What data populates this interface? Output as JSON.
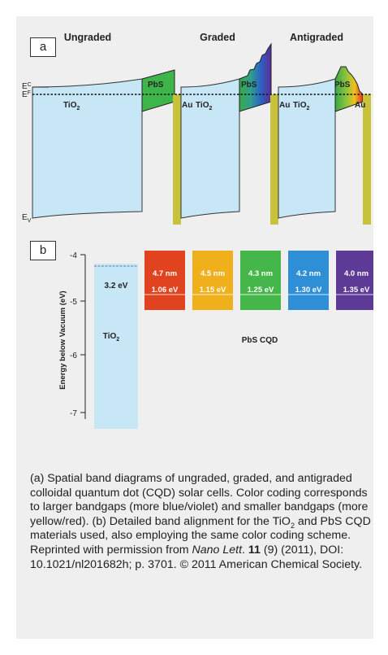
{
  "panel_a": {
    "label": "a",
    "titles": [
      "Ungraded",
      "Graded",
      "Antigraded"
    ],
    "ec_label": "E",
    "ec_sub": "C",
    "ef_label": "E",
    "ef_sub": "F",
    "ev_label": "E",
    "ev_sub": "V",
    "tio2_main": "TiO",
    "tio2_sub": "2",
    "pbs": "PbS",
    "au": "Au"
  },
  "panel_b": {
    "label": "b",
    "ylabel": "Energy below Vacuum (eV)",
    "ticks": [
      "-4",
      "-5",
      "-6",
      "-7"
    ],
    "tio2_gap": "3.2 eV",
    "tio2_main": "TiO",
    "tio2_sub": "2",
    "pbs_label": "PbS CQD",
    "dots": [
      {
        "size": "4.7 nm",
        "gap": "1.06 eV",
        "color": "#e2431f"
      },
      {
        "size": "4.5 nm",
        "gap": "1.15 eV",
        "color": "#f0b01c"
      },
      {
        "size": "4.3 nm",
        "gap": "1.25 eV",
        "color": "#45b649"
      },
      {
        "size": "4.2 nm",
        "gap": "1.30 eV",
        "color": "#2f8fd6"
      },
      {
        "size": "4.0 nm",
        "gap": "1.35 eV",
        "color": "#5c3a96"
      }
    ]
  },
  "caption": {
    "t1": "(a) Spatial band diagrams of ungraded, graded, and antigraded colloidal quantum dot (CQD) solar cells. Color coding corresponds to larger bandgaps (more blue/violet) and smaller bandgaps (more yellow/red). (b) Detailed band alignment for the TiO",
    "sub": "2",
    "t2": " and PbS CQD materials used, also employing the same color coding scheme. Reprinted with permission from ",
    "journal": "Nano Lett",
    "t3": ". ",
    "volume": "11",
    "t4": " (9) (2011), DOI: 10.1021/nl201682h; p. 3701. © 2011 American Chemical Society."
  }
}
